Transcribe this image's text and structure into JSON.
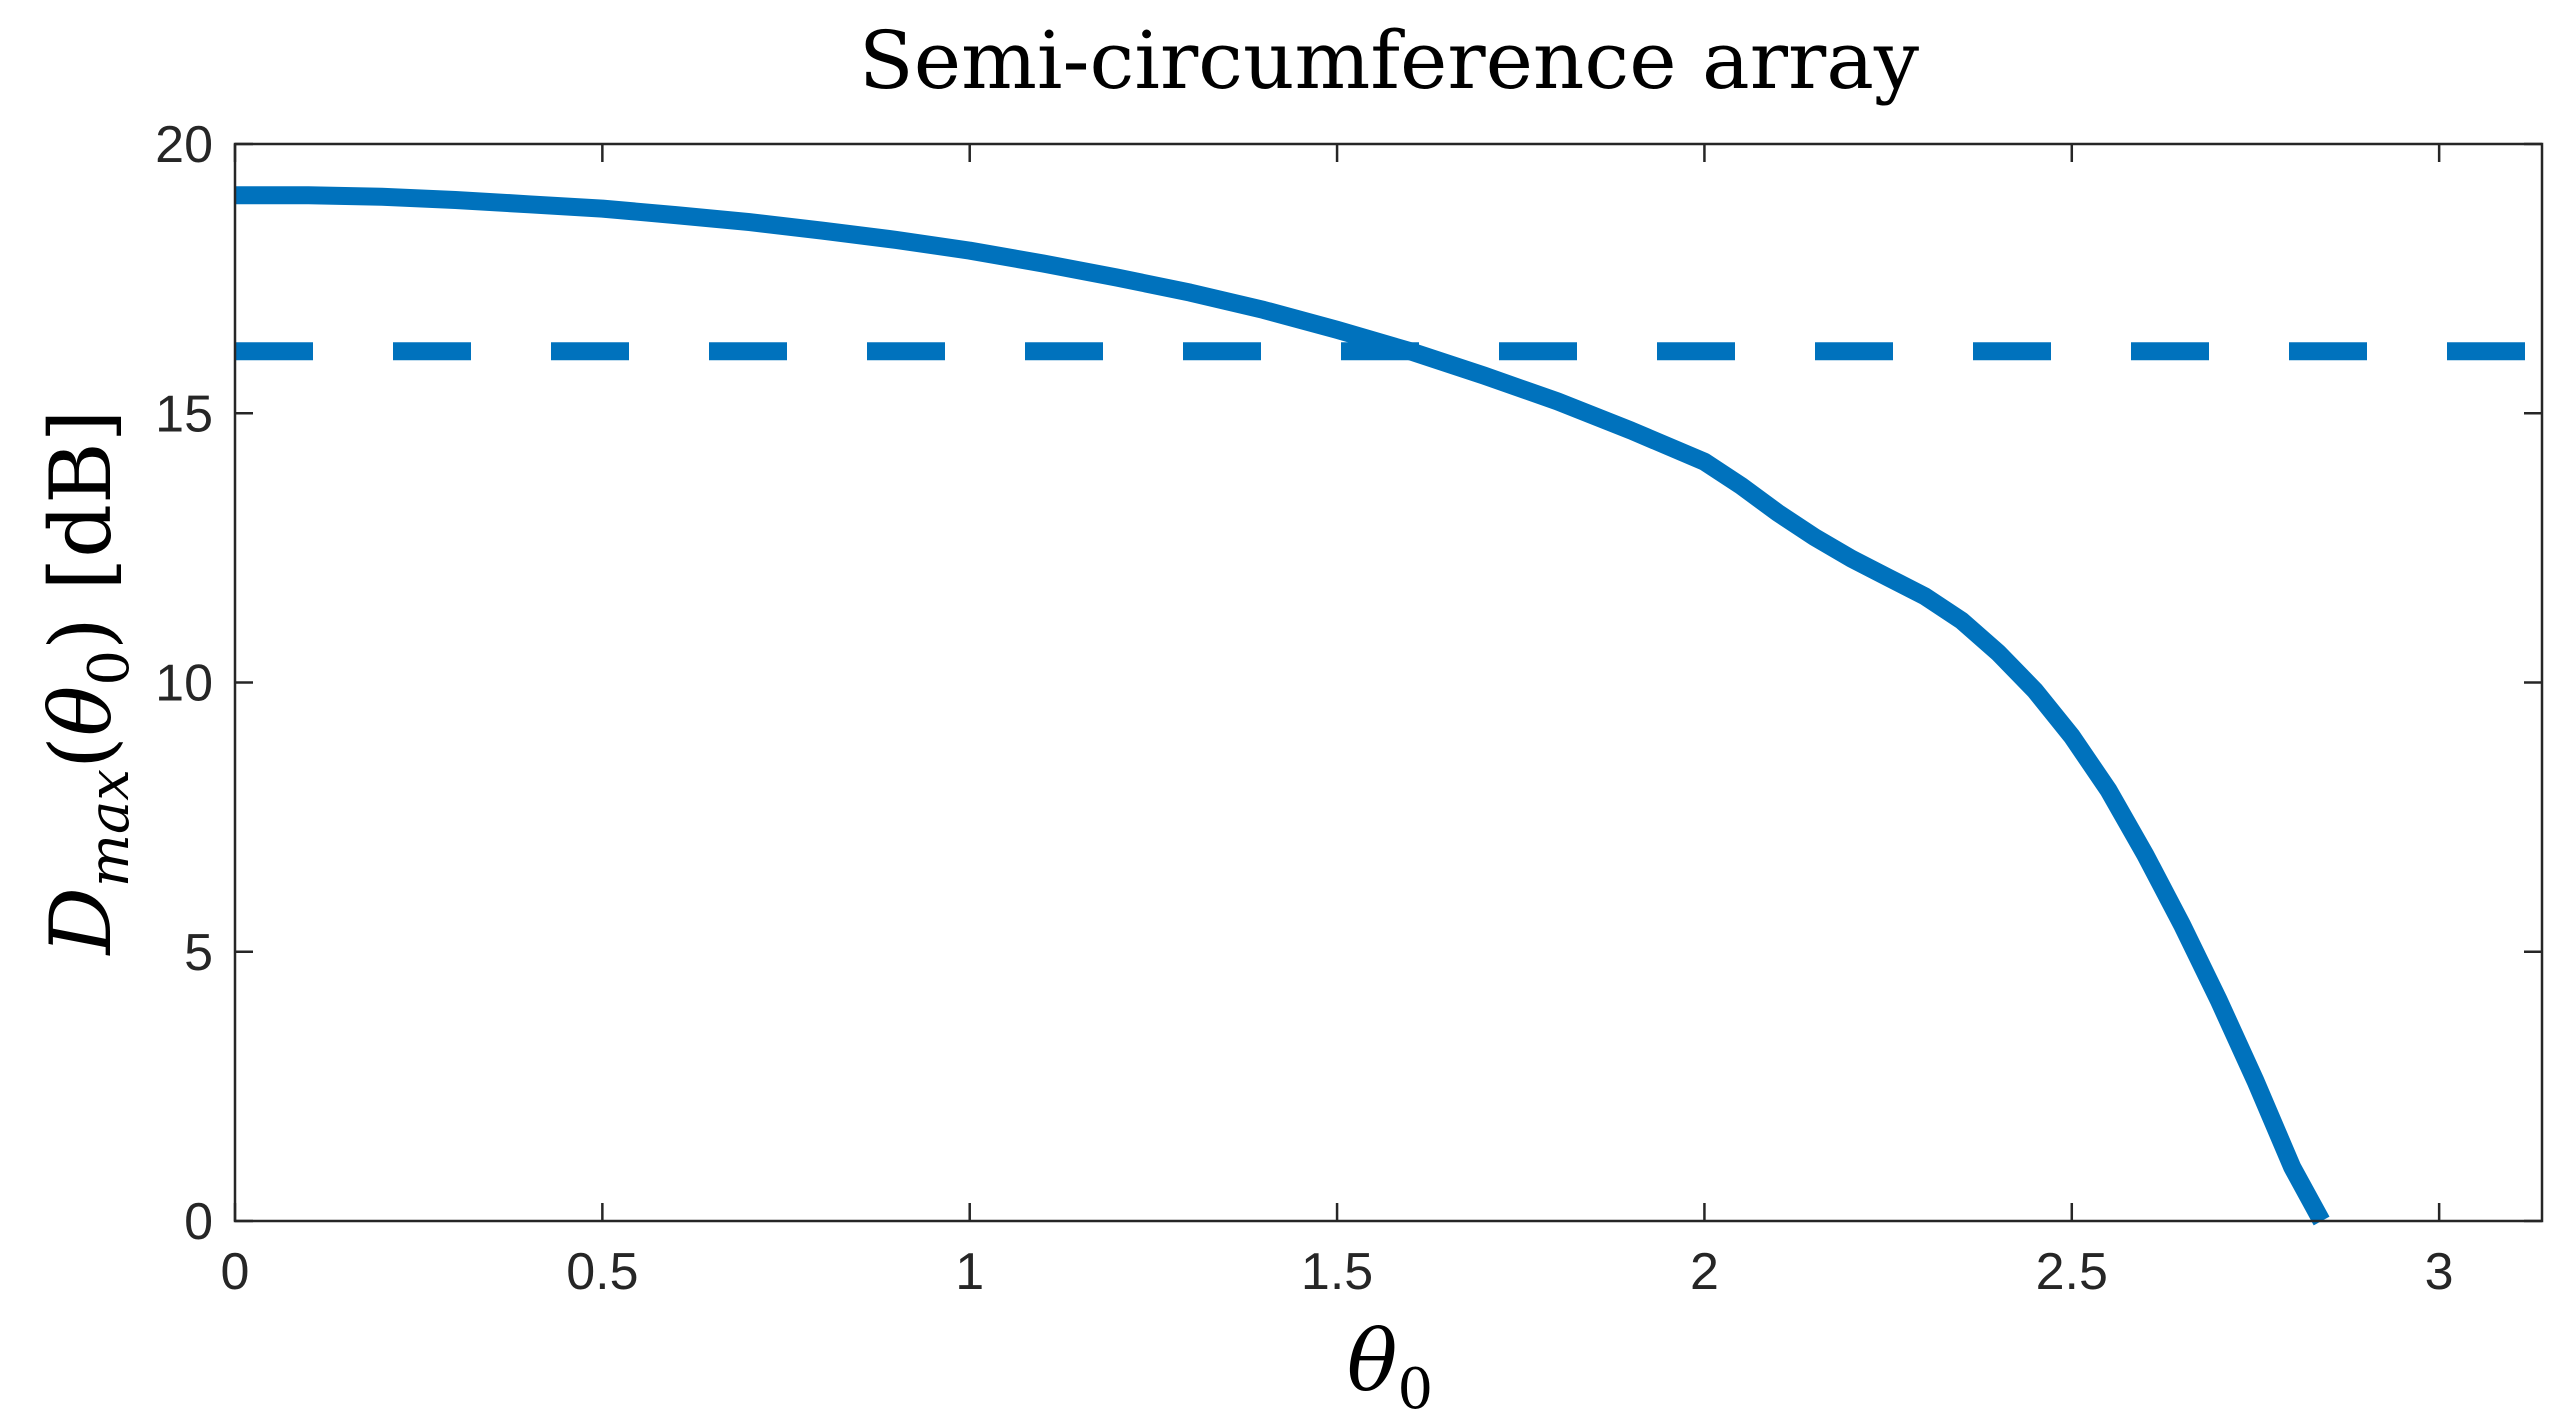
{
  "chart_data": {
    "type": "line",
    "title": "Semi-circumference array",
    "xlabel": "θ0",
    "ylabel": "D_max(θ0) [dB]",
    "xlim": [
      0,
      3.14
    ],
    "ylim": [
      0,
      20
    ],
    "xticks": [
      0,
      0.5,
      1,
      1.5,
      2,
      2.5,
      3
    ],
    "xtick_labels": [
      "0",
      "0.5",
      "1",
      "1.5",
      "2",
      "2.5",
      "3"
    ],
    "yticks": [
      0,
      5,
      10,
      15,
      20
    ],
    "ytick_labels": [
      "0",
      "5",
      "10",
      "15",
      "20"
    ],
    "grid": false,
    "series": [
      {
        "style": "solid",
        "color": "#0072BD",
        "x": [
          0,
          0.1,
          0.2,
          0.3,
          0.4,
          0.5,
          0.6,
          0.7,
          0.8,
          0.9,
          1.0,
          1.1,
          1.2,
          1.3,
          1.4,
          1.5,
          1.6,
          1.7,
          1.8,
          1.9,
          2.0,
          2.05,
          2.1,
          2.15,
          2.2,
          2.25,
          2.3,
          2.35,
          2.4,
          2.45,
          2.5,
          2.55,
          2.6,
          2.65,
          2.7,
          2.75,
          2.8,
          2.84
        ],
        "y": [
          19.05,
          19.05,
          19.02,
          18.96,
          18.88,
          18.8,
          18.68,
          18.55,
          18.39,
          18.22,
          18.02,
          17.78,
          17.52,
          17.24,
          16.92,
          16.55,
          16.15,
          15.7,
          15.22,
          14.68,
          14.1,
          13.65,
          13.15,
          12.7,
          12.3,
          11.95,
          11.6,
          11.15,
          10.55,
          9.85,
          9.0,
          8.0,
          6.8,
          5.5,
          4.1,
          2.6,
          1.0,
          0.0
        ]
      },
      {
        "style": "dashed",
        "color": "#0072BD",
        "x": [
          0,
          3.14
        ],
        "y": [
          16.15,
          16.15
        ]
      }
    ]
  }
}
